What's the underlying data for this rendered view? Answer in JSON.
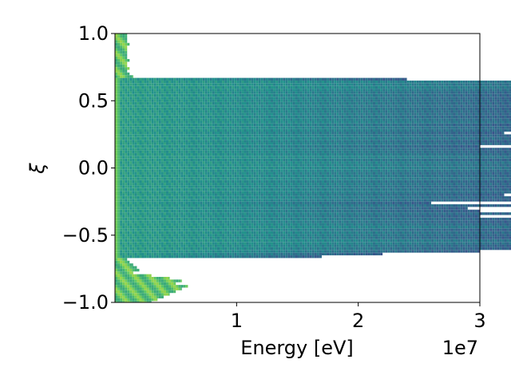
{
  "chart_data": {
    "type": "heatmap",
    "title": "",
    "xlabel": "Energy [eV]",
    "ylabel": "ξ",
    "x_offset_label": "1e7",
    "xlim": [
      0,
      3
    ],
    "ylim": [
      -1.0,
      1.0
    ],
    "x_ticks": [
      1,
      2,
      3
    ],
    "x_tick_labels": [
      "1",
      "2",
      "3"
    ],
    "y_ticks": [
      -1.0,
      -0.5,
      0.0,
      0.5,
      1.0
    ],
    "y_tick_labels": [
      "−1.0",
      "−0.5",
      "0.0",
      "0.5",
      "1.0"
    ],
    "grid": false,
    "colormap": "viridis",
    "x_bin_width": 0.02,
    "y_bin_height": 0.02,
    "column_edges": [
      [
        -1.0,
        -0.99,
        0.3
      ],
      [
        -0.99,
        -0.97,
        0.35
      ],
      [
        -0.97,
        -0.95,
        0.4
      ],
      [
        -0.95,
        -0.93,
        0.45
      ],
      [
        -0.93,
        -0.91,
        0.5
      ],
      [
        -0.91,
        -0.89,
        0.55
      ],
      [
        -0.89,
        -0.87,
        0.6
      ],
      [
        -0.87,
        -0.85,
        0.5
      ],
      [
        -0.85,
        -0.83,
        0.55
      ],
      [
        -0.83,
        -0.81,
        0.45
      ],
      [
        -0.81,
        -0.79,
        0.3
      ],
      [
        -0.79,
        -0.77,
        0.15
      ],
      [
        -0.77,
        -0.75,
        0.2
      ],
      [
        -0.75,
        -0.73,
        0.18
      ],
      [
        -0.73,
        -0.71,
        0.15
      ],
      [
        -0.71,
        -0.69,
        0.12
      ],
      [
        -0.69,
        -0.67,
        0.1
      ],
      [
        -0.67,
        -0.65,
        1.7
      ],
      [
        -0.65,
        -0.63,
        2.2
      ],
      [
        -0.63,
        -0.61,
        3.0
      ],
      [
        -0.61,
        -0.59,
        3.4
      ],
      [
        -0.59,
        -0.57,
        3.5
      ],
      [
        -0.57,
        -0.55,
        4.3
      ],
      [
        -0.55,
        -0.53,
        4.6
      ],
      [
        -0.53,
        -0.51,
        3.3
      ],
      [
        -0.51,
        -0.49,
        3.6
      ],
      [
        -0.49,
        -0.47,
        4.0
      ],
      [
        -0.47,
        -0.45,
        3.3
      ],
      [
        -0.45,
        -0.43,
        4.8
      ],
      [
        -0.43,
        -0.41,
        3.8
      ],
      [
        -0.41,
        -0.39,
        3.3
      ],
      [
        -0.39,
        -0.37,
        3.5
      ],
      [
        -0.37,
        -0.35,
        3.0
      ],
      [
        -0.35,
        -0.33,
        3.6
      ],
      [
        -0.33,
        -0.31,
        3.0
      ],
      [
        -0.31,
        -0.29,
        2.9
      ],
      [
        -0.29,
        -0.27,
        3.4
      ],
      [
        -0.27,
        -0.25,
        2.6
      ],
      [
        -0.25,
        -0.23,
        3.3
      ],
      [
        -0.23,
        -0.21,
        3.7
      ],
      [
        -0.21,
        -0.19,
        3.2
      ],
      [
        -0.19,
        -0.17,
        4.0
      ],
      [
        -0.17,
        -0.15,
        3.7
      ],
      [
        -0.15,
        -0.13,
        3.4
      ],
      [
        -0.13,
        -0.11,
        3.9
      ],
      [
        -0.11,
        -0.09,
        3.5
      ],
      [
        -0.09,
        -0.07,
        4.3
      ],
      [
        -0.07,
        -0.05,
        3.9
      ],
      [
        -0.05,
        -0.03,
        3.6
      ],
      [
        -0.03,
        -0.01,
        4.1
      ],
      [
        -0.01,
        0.01,
        4.9
      ],
      [
        0.01,
        0.03,
        4.2
      ],
      [
        0.03,
        0.05,
        4.9
      ],
      [
        0.05,
        0.07,
        3.6
      ],
      [
        0.07,
        0.09,
        4.8
      ],
      [
        0.09,
        0.11,
        4.0
      ],
      [
        0.11,
        0.13,
        3.6
      ],
      [
        0.13,
        0.15,
        3.4
      ],
      [
        0.15,
        0.17,
        3.0
      ],
      [
        0.17,
        0.19,
        3.8
      ],
      [
        0.19,
        0.21,
        3.3
      ],
      [
        0.21,
        0.23,
        4.1
      ],
      [
        0.23,
        0.25,
        3.6
      ],
      [
        0.25,
        0.27,
        3.2
      ],
      [
        0.27,
        0.29,
        3.8
      ],
      [
        0.29,
        0.31,
        3.9
      ],
      [
        0.31,
        0.33,
        3.3
      ],
      [
        0.33,
        0.35,
        4.5
      ],
      [
        0.35,
        0.37,
        3.9
      ],
      [
        0.37,
        0.39,
        3.5
      ],
      [
        0.39,
        0.41,
        3.7
      ],
      [
        0.41,
        0.43,
        3.7
      ],
      [
        0.43,
        0.45,
        3.6
      ],
      [
        0.45,
        0.47,
        3.6
      ],
      [
        0.47,
        0.49,
        3.7
      ],
      [
        0.49,
        0.51,
        3.7
      ],
      [
        0.51,
        0.53,
        3.6
      ],
      [
        0.53,
        0.55,
        3.6
      ],
      [
        0.55,
        0.57,
        3.7
      ],
      [
        0.57,
        0.59,
        4.4
      ],
      [
        0.59,
        0.61,
        5.3
      ],
      [
        0.61,
        0.63,
        4.6
      ],
      [
        0.63,
        0.65,
        4.9
      ],
      [
        0.65,
        0.67,
        2.4
      ],
      [
        0.67,
        0.69,
        0.15
      ],
      [
        0.69,
        0.71,
        0.12
      ],
      [
        0.71,
        0.73,
        0.1
      ],
      [
        0.73,
        0.75,
        0.12
      ],
      [
        0.75,
        0.77,
        0.1
      ],
      [
        0.77,
        0.79,
        0.1
      ],
      [
        0.79,
        0.81,
        0.12
      ],
      [
        0.81,
        0.83,
        0.1
      ],
      [
        0.83,
        0.85,
        0.1
      ],
      [
        0.85,
        0.87,
        0.1
      ],
      [
        0.87,
        0.89,
        0.1
      ],
      [
        0.89,
        0.91,
        0.1
      ],
      [
        0.91,
        0.93,
        0.12
      ],
      [
        0.93,
        0.95,
        0.1
      ],
      [
        0.95,
        0.97,
        0.1
      ],
      [
        0.97,
        1.0,
        0.1
      ]
    ]
  }
}
